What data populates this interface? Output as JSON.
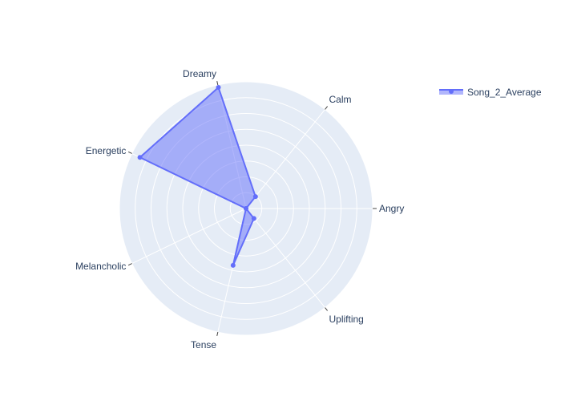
{
  "chart_data": {
    "type": "radar",
    "title": "",
    "categories": [
      "Angry",
      "Calm",
      "Dreamy",
      "Energetic",
      "Melancholic",
      "Tense",
      "Uplifting"
    ],
    "series": [
      {
        "name": "Song_2_Average",
        "values": [
          0.0,
          0.12,
          0.98,
          0.93,
          0.0,
          0.46,
          0.1
        ],
        "color": "#636efa",
        "fill": "rgba(99,110,250,0.5)"
      }
    ],
    "radial_range": [
      0,
      1
    ],
    "radial_ticks": [
      0.125,
      0.25,
      0.375,
      0.5,
      0.625,
      0.75,
      0.875,
      1
    ],
    "polar_background": "#e5ecf6",
    "grid_color": "#ffffff",
    "legend_position": "top-right"
  }
}
